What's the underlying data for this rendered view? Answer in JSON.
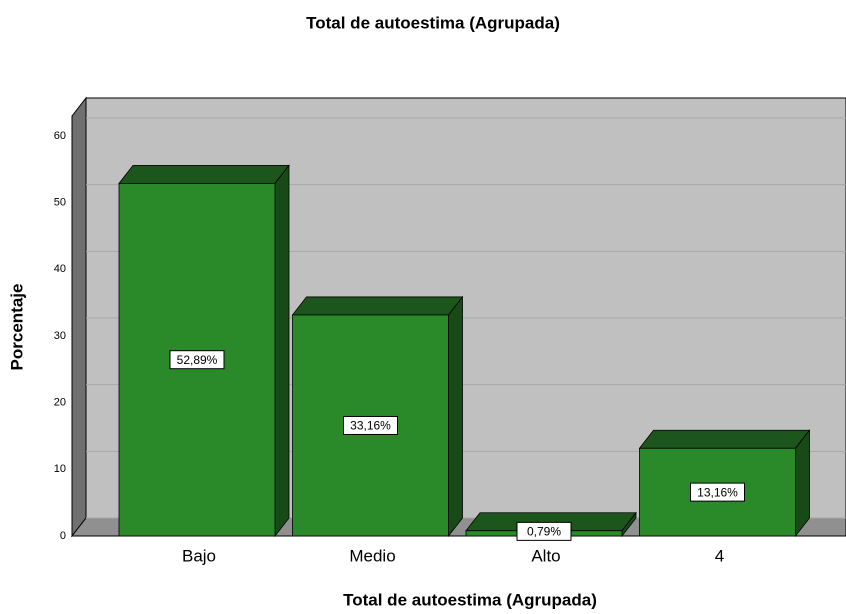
{
  "chart_data": {
    "type": "bar3d",
    "title": "Total de autoestima (Agrupada)",
    "x_label": "Total de autoestima (Agrupada)",
    "y_label": "Porcentaje",
    "categories": [
      "Bajo",
      "Medio",
      "Alto",
      "4"
    ],
    "values": [
      52.89,
      33.16,
      0.79,
      13.16
    ],
    "value_labels": [
      "52,89%",
      "33,16%",
      "0,79%",
      "13,16%"
    ],
    "color": "#2a8a2a",
    "ylim": [
      0,
      63
    ],
    "yticks": [
      0,
      10,
      20,
      30,
      40,
      50,
      60
    ],
    "grid": true
  }
}
